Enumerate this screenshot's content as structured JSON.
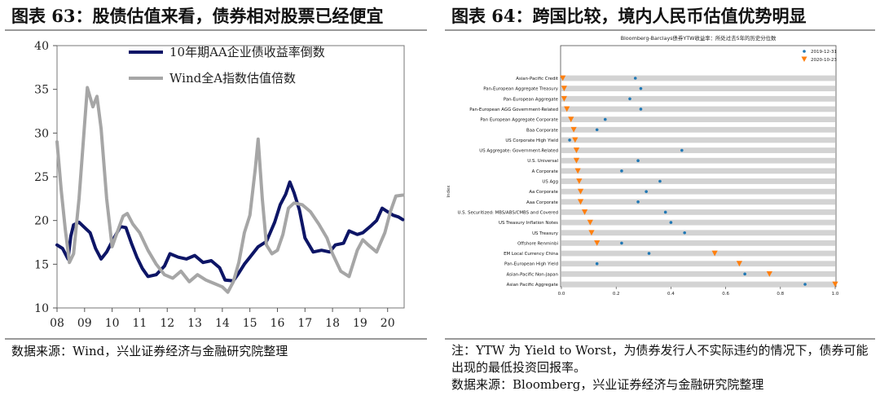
{
  "left": {
    "title": "图表 63：股债估值来看，债券相对股票已经便宜",
    "source": "数据来源：Wind，兴业证券经济与金融研究院整理",
    "chart_data": {
      "type": "line",
      "x_tick_labels": [
        "08",
        "09",
        "10",
        "11",
        "12",
        "13",
        "14",
        "15",
        "16",
        "17",
        "18",
        "19",
        "20"
      ],
      "x_range": [
        2008.0,
        2020.6
      ],
      "ylim": [
        10,
        40
      ],
      "y_ticks": [
        10,
        15,
        20,
        25,
        30,
        35,
        40
      ],
      "legend_position": "top-right",
      "grid": false,
      "series": [
        {
          "name": "10年期AA企业债收益率倒数",
          "color": "#0d1566",
          "x": [
            2008.0,
            2008.2,
            2008.4,
            2008.5,
            2008.6,
            2008.8,
            2009.0,
            2009.2,
            2009.4,
            2009.6,
            2009.8,
            2010.0,
            2010.3,
            2010.5,
            2010.7,
            2010.9,
            2011.1,
            2011.3,
            2011.6,
            2011.9,
            2012.1,
            2012.4,
            2012.7,
            2013.0,
            2013.3,
            2013.6,
            2013.9,
            2014.1,
            2014.4,
            2014.6,
            2014.8,
            2015.0,
            2015.3,
            2015.6,
            2015.9,
            2016.1,
            2016.3,
            2016.45,
            2016.6,
            2016.8,
            2017.0,
            2017.3,
            2017.6,
            2017.9,
            2018.1,
            2018.4,
            2018.6,
            2018.9,
            2019.1,
            2019.4,
            2019.6,
            2019.8,
            2020.0,
            2020.2,
            2020.4,
            2020.55
          ],
          "y": [
            17.2,
            16.8,
            15.6,
            18.2,
            19.5,
            19.8,
            19.2,
            18.6,
            16.8,
            15.6,
            16.4,
            17.6,
            19.3,
            19.2,
            17.4,
            15.8,
            14.5,
            13.6,
            13.8,
            14.8,
            16.2,
            15.8,
            15.6,
            16.0,
            15.2,
            15.4,
            14.6,
            13.2,
            13.1,
            14.0,
            15.0,
            15.8,
            17.0,
            17.6,
            19.8,
            21.8,
            23.0,
            24.4,
            23.2,
            21.2,
            18.0,
            16.4,
            16.6,
            16.4,
            17.2,
            17.4,
            18.8,
            18.4,
            18.6,
            19.4,
            20.0,
            21.4,
            21.0,
            20.6,
            20.4,
            20.1
          ]
        },
        {
          "name": "Wind全A指数估值倍数",
          "color": "#a6a6a6",
          "x": [
            2008.0,
            2008.15,
            2008.3,
            2008.45,
            2008.6,
            2008.8,
            2009.0,
            2009.1,
            2009.3,
            2009.45,
            2009.6,
            2009.8,
            2010.0,
            2010.2,
            2010.4,
            2010.55,
            2010.75,
            2011.0,
            2011.3,
            2011.6,
            2011.9,
            2012.2,
            2012.5,
            2012.8,
            2013.1,
            2013.4,
            2013.7,
            2014.0,
            2014.2,
            2014.4,
            2014.6,
            2014.8,
            2015.0,
            2015.2,
            2015.3,
            2015.45,
            2015.6,
            2015.8,
            2016.0,
            2016.2,
            2016.4,
            2016.6,
            2016.9,
            2017.2,
            2017.5,
            2017.8,
            2018.0,
            2018.3,
            2018.6,
            2018.9,
            2019.1,
            2019.3,
            2019.6,
            2019.9,
            2020.1,
            2020.3,
            2020.55
          ],
          "y": [
            29.0,
            23.5,
            19.0,
            15.2,
            16.2,
            22.5,
            31.0,
            35.2,
            33.0,
            34.2,
            30.5,
            22.5,
            17.0,
            18.8,
            20.5,
            20.8,
            19.6,
            18.6,
            16.6,
            15.0,
            13.8,
            13.4,
            14.2,
            13.0,
            13.8,
            13.2,
            12.8,
            12.4,
            11.8,
            13.0,
            15.2,
            18.6,
            20.6,
            26.0,
            29.3,
            22.5,
            17.2,
            16.2,
            16.6,
            18.4,
            21.4,
            22.0,
            21.8,
            21.0,
            19.6,
            18.0,
            16.2,
            14.2,
            13.6,
            16.6,
            17.8,
            17.2,
            16.4,
            18.6,
            21.0,
            22.8,
            22.9
          ]
        }
      ]
    }
  },
  "right": {
    "title": "图表 64：跨国比较，境内人民币估值优势明显",
    "note_line1": "注：YTW 为 Yield to Worst，为债券发行人不实际违约的情况下，债券可能",
    "note_line2": "出现的最低投资回报率。",
    "source": "数据来源：Bloomberg，兴业证券经济与金融研究院整理",
    "chart_data": {
      "type": "scatter",
      "title": "Bloomberg-Barclays债券YTW收益率：所处过去5年的历史分位数",
      "ylabel": "Index",
      "xlim": [
        0.0,
        1.0
      ],
      "x_ticks": [
        0.0,
        0.2,
        0.4,
        0.6,
        0.8,
        1.0
      ],
      "legend_position": "top-right",
      "categories": [
        "Asian-Pacific Credit",
        "Pan-European Aggregate Treasury",
        "Pan-European Aggregate",
        "Pan-European AGG Government-Related",
        "Pan European Aggregate Corporate",
        "Baa Corporate",
        "US Corporate High Yield",
        "US Aggregate: Government-Related",
        "U.S. Universal",
        "A Corporate",
        "US Agg",
        "Aa Corporate",
        "Aaa Corporate",
        "U.S. Securitized: MBS/ABS/CMBS and Covered",
        "US Treasury Inflation Notes",
        "US Treasury",
        "Offshore Renminbi",
        "EM Local Currency China",
        "Pan-European High Yield",
        "Asian-Pacific Non-Japan",
        "Asian Pacific Aggregate"
      ],
      "series": [
        {
          "name": "2019-12-31",
          "color": "#1f77b4",
          "marker": "dot",
          "values": [
            0.27,
            0.29,
            0.25,
            0.29,
            0.16,
            0.13,
            0.03,
            0.44,
            0.28,
            0.22,
            0.36,
            0.31,
            0.28,
            0.38,
            0.4,
            0.45,
            0.22,
            0.32,
            0.13,
            0.67,
            0.89
          ]
        },
        {
          "name": "2020-10-23",
          "color": "#ff7f0e",
          "marker": "triangle-down",
          "values": [
            0.005,
            0.01,
            0.01,
            0.02,
            0.035,
            0.045,
            0.05,
            0.055,
            0.055,
            0.06,
            0.065,
            0.07,
            0.07,
            0.085,
            0.105,
            0.11,
            0.13,
            0.56,
            0.65,
            0.76,
            1.0
          ]
        }
      ]
    }
  }
}
